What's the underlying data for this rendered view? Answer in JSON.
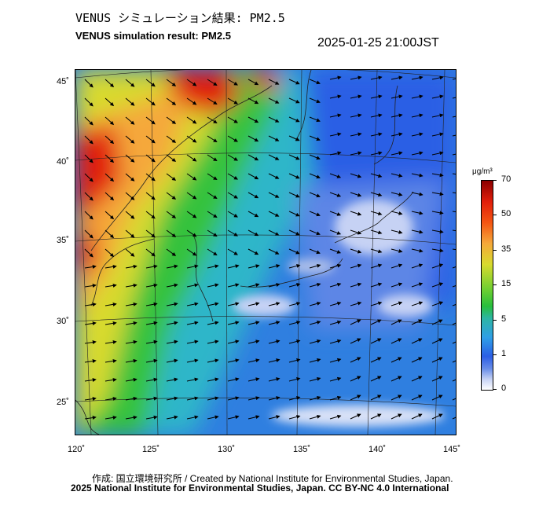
{
  "header": {
    "title_jp": "VENUS シミュレーション結果: PM2.5",
    "title_en": "VENUS simulation result: PM2.5",
    "timestamp": "2025-01-25 21:00JST"
  },
  "map": {
    "lat_ticks": [
      "45˚",
      "40˚",
      "35˚",
      "30˚",
      "25˚"
    ],
    "lon_ticks": [
      "120˚",
      "125˚",
      "130˚",
      "135˚",
      "140˚",
      "145˚"
    ],
    "colors": {
      "very_high": "#e11e0b",
      "high": "#f5a83a",
      "mid": "#28bf3c",
      "low": "#2f9fe6",
      "very_low": "#2b5ee5",
      "clean": "#c6d2f4"
    }
  },
  "legend": {
    "unit": "μg/m³",
    "ticks": [
      "70",
      "50",
      "35",
      "15",
      "5",
      "1",
      "0"
    ]
  },
  "footer": {
    "credit": "作成: 国立環境研究所 / Created by National Institute for Environmental Studies, Japan.",
    "copyright": "2025 National Institute for Environmental Studies, Japan. CC BY-NC 4.0 International"
  }
}
